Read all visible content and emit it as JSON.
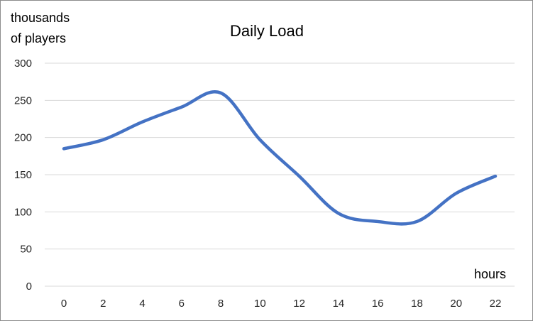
{
  "chart_data": {
    "type": "line",
    "title": "Daily Load",
    "ylabel": [
      "thousands",
      "of players"
    ],
    "xlabel": "hours",
    "x": [
      0,
      2,
      4,
      6,
      8,
      10,
      12,
      14,
      16,
      18,
      20,
      22
    ],
    "xticks": [
      "0",
      "2",
      "4",
      "6",
      "8",
      "10",
      "12",
      "14",
      "16",
      "18",
      "20",
      "22"
    ],
    "yticks": [
      "0",
      "50",
      "100",
      "150",
      "200",
      "250",
      "300"
    ],
    "ylim": [
      0,
      300
    ],
    "grid": true,
    "legend": "none",
    "smooth": true,
    "series": [
      {
        "values": [
          185,
          197,
          221,
          241,
          260,
          197,
          148,
          98,
          87,
          87,
          125,
          148
        ],
        "color": "#4472C4"
      }
    ],
    "colors": {
      "grid": "#d9d9d9",
      "tick_text": "#262626"
    }
  }
}
